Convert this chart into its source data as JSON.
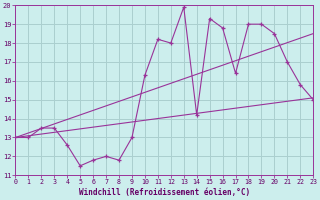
{
  "xlabel": "Windchill (Refroidissement éolien,°C)",
  "xlim": [
    0,
    23
  ],
  "ylim": [
    11,
    20
  ],
  "xticks": [
    0,
    1,
    2,
    3,
    4,
    5,
    6,
    7,
    8,
    9,
    10,
    11,
    12,
    13,
    14,
    15,
    16,
    17,
    18,
    19,
    20,
    21,
    22,
    23
  ],
  "yticks": [
    11,
    12,
    13,
    14,
    15,
    16,
    17,
    18,
    19,
    20
  ],
  "bg_color": "#cceeed",
  "line_color": "#993399",
  "grid_color": "#aacfcf",
  "lines": [
    {
      "x": [
        0,
        1,
        2,
        3,
        4,
        5,
        6,
        7,
        8,
        9,
        10,
        11,
        12,
        13,
        14,
        15,
        16,
        17,
        18,
        19,
        20,
        21,
        22,
        23
      ],
      "y": [
        13,
        13,
        13.5,
        13.5,
        12.6,
        11.5,
        11.8,
        12.0,
        11.8,
        13.0,
        16.3,
        18.2,
        18.0,
        19.9,
        14.2,
        19.3,
        18.8,
        16.4,
        19.0,
        19.0,
        18.5,
        17.0,
        15.8,
        15.0
      ]
    },
    {
      "x": [
        0,
        23
      ],
      "y": [
        13.0,
        18.5
      ]
    },
    {
      "x": [
        0,
        23
      ],
      "y": [
        13.0,
        15.1
      ]
    }
  ]
}
